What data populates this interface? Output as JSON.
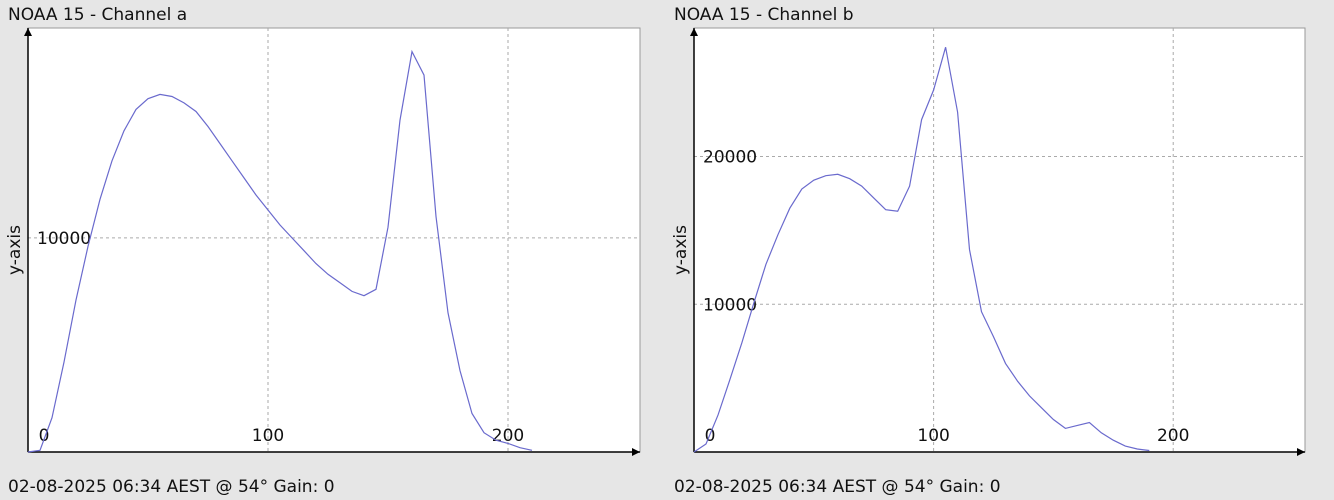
{
  "chart_data": [
    {
      "type": "line",
      "title": "NOAA 15 - Channel a",
      "y_label": "y-axis",
      "footer": "02-08-2025 06:34 AEST @ 54° Gain: 0",
      "xlim": [
        0,
        255
      ],
      "xticks": [
        0,
        100,
        200
      ],
      "ylim": [
        0,
        19800
      ],
      "yticks": [
        10000
      ],
      "grid": true,
      "color": "#6a6acd",
      "x": [
        0,
        5,
        10,
        15,
        20,
        25,
        30,
        35,
        40,
        45,
        50,
        55,
        60,
        65,
        70,
        75,
        80,
        85,
        90,
        95,
        100,
        105,
        110,
        115,
        120,
        125,
        130,
        135,
        140,
        145,
        150,
        155,
        160,
        165,
        170,
        175,
        180,
        185,
        190,
        195,
        200,
        205,
        210
      ],
      "values": [
        0,
        80,
        1600,
        4200,
        7100,
        9600,
        11800,
        13600,
        15000,
        16000,
        16500,
        16700,
        16600,
        16300,
        15900,
        15200,
        14400,
        13600,
        12800,
        12000,
        11300,
        10600,
        10000,
        9400,
        8800,
        8300,
        7900,
        7500,
        7300,
        7600,
        10500,
        15500,
        18700,
        17600,
        11000,
        6500,
        3800,
        1800,
        900,
        550,
        400,
        200,
        80
      ]
    },
    {
      "type": "line",
      "title": "NOAA 15 - Channel b",
      "y_label": "y-axis",
      "footer": "02-08-2025 06:34 AEST @ 54° Gain: 0",
      "xlim": [
        0,
        255
      ],
      "xticks": [
        0,
        100,
        200
      ],
      "ylim": [
        0,
        28700
      ],
      "yticks": [
        10000,
        20000
      ],
      "grid": true,
      "color": "#6a6acd",
      "x": [
        0,
        5,
        10,
        15,
        20,
        25,
        30,
        35,
        40,
        45,
        50,
        55,
        60,
        65,
        70,
        75,
        80,
        85,
        90,
        95,
        100,
        105,
        110,
        115,
        120,
        125,
        130,
        135,
        140,
        145,
        150,
        155,
        160,
        165,
        170,
        175,
        180,
        185,
        190
      ],
      "values": [
        0,
        540,
        2500,
        4900,
        7400,
        10100,
        12700,
        14700,
        16500,
        17800,
        18400,
        18700,
        18800,
        18500,
        18000,
        17200,
        16400,
        16300,
        18000,
        22500,
        24500,
        27400,
        23000,
        13700,
        9500,
        7800,
        6000,
        4800,
        3800,
        3000,
        2200,
        1600,
        1800,
        2000,
        1300,
        800,
        400,
        200,
        100
      ]
    }
  ]
}
